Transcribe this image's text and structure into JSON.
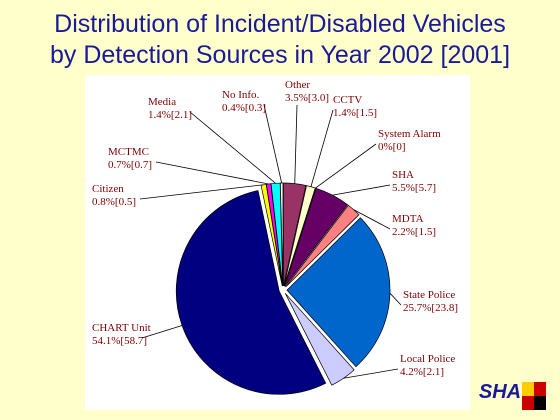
{
  "chart_data": {
    "type": "pie",
    "title": [
      "Distribution of Incident/Disabled Vehicles",
      "by Detection Sources in Year 2002 [2001]"
    ],
    "categories": [
      "Other",
      "CCTV",
      "System Alarm",
      "SHA",
      "MDTA",
      "State Police",
      "Local Police",
      "CHART Unit",
      "Citizen",
      "MCTMC",
      "Media",
      "No Info."
    ],
    "values": [
      3.5,
      1.4,
      0,
      5.5,
      2.2,
      25.7,
      4.2,
      54.1,
      0.8,
      0.7,
      1.4,
      0.4
    ],
    "value_labels": [
      "3.5%",
      "1.4%",
      "0%",
      "5.5%",
      "2.2%",
      "25.7%",
      "4.2%",
      "54.1%",
      "0.8%",
      "0.7%",
      "1.4%",
      "0.4%"
    ],
    "previous_values": [
      3.0,
      1.5,
      0,
      5.7,
      1.5,
      23.8,
      2.1,
      58.7,
      0.5,
      0.7,
      2.1,
      0.3
    ],
    "previous_value_labels": [
      "[3.0]",
      "[1.5]",
      "[0]",
      "[5.7]",
      "[1.5]",
      "[23.8]",
      "[2.1]",
      "[58.7]",
      "[0.5]",
      "[0.7]",
      "[2.1]",
      "[0.3]"
    ],
    "colors": [
      "#993366",
      "#ffffcc",
      "#ccffff",
      "#660066",
      "#ff8080",
      "#0066cc",
      "#ccccff",
      "#000080",
      "#ffff00",
      "#ff00ff",
      "#00ffff",
      "#ffffff"
    ],
    "logo": "SHA"
  }
}
